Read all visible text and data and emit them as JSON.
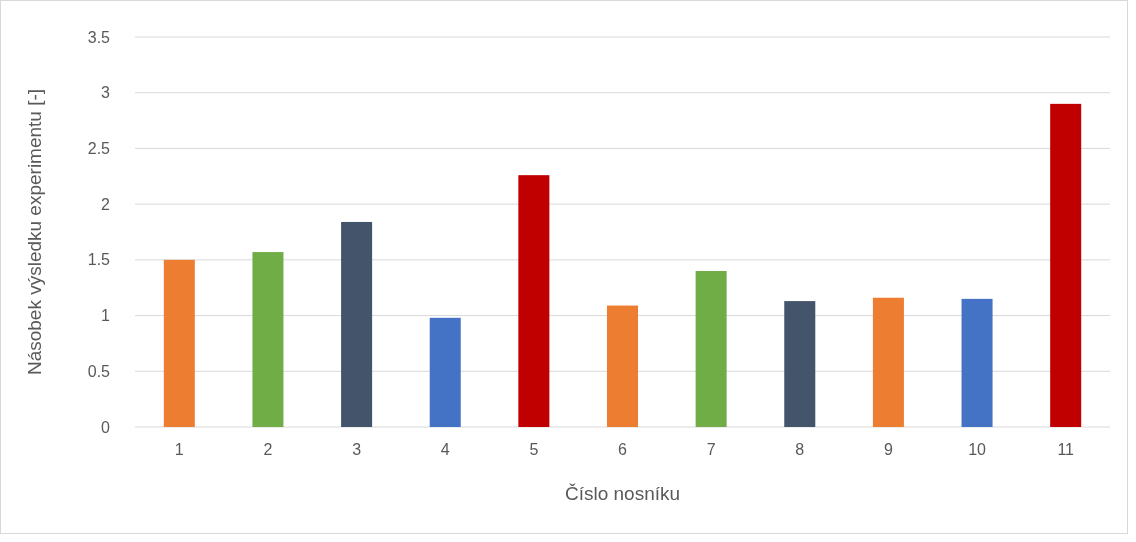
{
  "chart_data": {
    "type": "bar",
    "xlabel": "Číslo nosníku",
    "ylabel": "Násobek výsledku experimentu [-]",
    "categories": [
      "1",
      "2",
      "3",
      "4",
      "5",
      "6",
      "7",
      "8",
      "9",
      "10",
      "11"
    ],
    "values": [
      1.5,
      1.57,
      1.84,
      0.98,
      2.26,
      1.09,
      1.4,
      1.13,
      1.16,
      1.15,
      2.9
    ],
    "colors": [
      "#ed7d31",
      "#70ad47",
      "#44546a",
      "#4472c4",
      "#c00000",
      "#ed7d31",
      "#70ad47",
      "#44546a",
      "#ed7d31",
      "#4472c4",
      "#c00000"
    ],
    "ylim": [
      0,
      3.5
    ],
    "yticks": [
      0,
      0.5,
      1,
      1.5,
      2,
      2.5,
      3,
      3.5
    ],
    "grid": "y"
  }
}
